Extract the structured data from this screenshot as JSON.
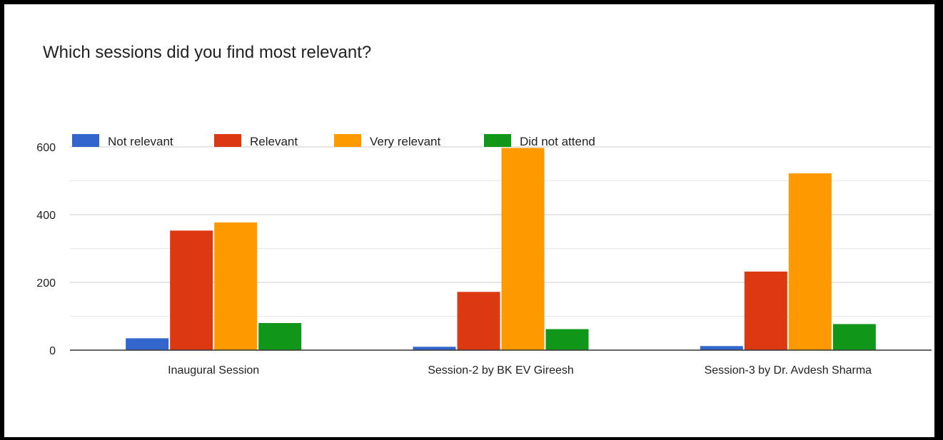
{
  "chart_data": {
    "type": "bar",
    "title": "Which sessions did you find most relevant?",
    "categories": [
      "Inaugural Session",
      "Session-2 by BK EV Gireesh",
      "Session-3 by Dr. Avdesh Sharma"
    ],
    "series": [
      {
        "name": "Not relevant",
        "color": "#3366cc",
        "values": [
          35,
          10,
          12
        ]
      },
      {
        "name": "Relevant",
        "color": "#dc3912",
        "values": [
          353,
          172,
          232
        ]
      },
      {
        "name": "Very relevant",
        "color": "#ff9900",
        "values": [
          377,
          597,
          522
        ]
      },
      {
        "name": "Did not attend",
        "color": "#109618",
        "values": [
          80,
          62,
          77
        ]
      }
    ],
    "yticks": [
      0,
      200,
      400,
      600
    ],
    "ylim": [
      0,
      600
    ],
    "gridlines": true,
    "legend_position": "top"
  }
}
